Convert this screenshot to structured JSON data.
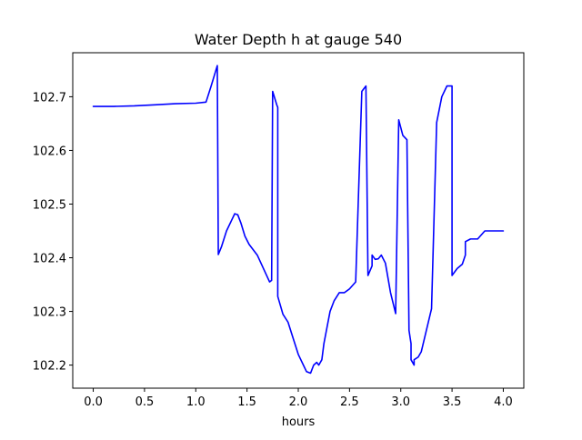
{
  "chart_data": {
    "type": "line",
    "title": "Water Depth h at gauge 540",
    "xlabel": "hours",
    "ylabel": "",
    "xlim": [
      -0.2,
      4.2
    ],
    "ylim": [
      102.157,
      102.782
    ],
    "xticks": [
      0.0,
      0.5,
      1.0,
      1.5,
      2.0,
      2.5,
      3.0,
      3.5,
      4.0
    ],
    "xtick_labels": [
      "0.0",
      "0.5",
      "1.0",
      "1.5",
      "2.0",
      "2.5",
      "3.0",
      "3.5",
      "4.0"
    ],
    "yticks": [
      102.2,
      102.3,
      102.4,
      102.5,
      102.6,
      102.7
    ],
    "ytick_labels": [
      "102.2",
      "102.3",
      "102.4",
      "102.5",
      "102.6",
      "102.7"
    ],
    "grid": false,
    "legend": "none",
    "series": [
      {
        "color": "#0000ff",
        "x": [
          0.0,
          0.2,
          0.4,
          0.6,
          0.8,
          1.0,
          1.1,
          1.15,
          1.21,
          1.22,
          1.25,
          1.3,
          1.35,
          1.38,
          1.41,
          1.44,
          1.48,
          1.52,
          1.6,
          1.66,
          1.72,
          1.74,
          1.75,
          1.79,
          1.8,
          1.8,
          1.85,
          1.9,
          1.95,
          2.0,
          2.05,
          2.08,
          2.12,
          2.15,
          2.18,
          2.2,
          2.23,
          2.25,
          2.28,
          2.31,
          2.35,
          2.4,
          2.45,
          2.5,
          2.56,
          2.62,
          2.66,
          2.68,
          2.68,
          2.72,
          2.72,
          2.75,
          2.78,
          2.81,
          2.85,
          2.9,
          2.95,
          2.98,
          3.02,
          3.06,
          3.08,
          3.08,
          3.1,
          3.1,
          3.13,
          3.13,
          3.17,
          3.2,
          3.25,
          3.3,
          3.35,
          3.4,
          3.45,
          3.5,
          3.5,
          3.55,
          3.6,
          3.63,
          3.63,
          3.68,
          3.75,
          3.82,
          3.88,
          3.94,
          4.0
        ],
        "y": [
          102.682,
          102.682,
          102.683,
          102.685,
          102.687,
          102.688,
          102.69,
          102.72,
          102.758,
          102.406,
          102.42,
          102.45,
          102.47,
          102.482,
          102.48,
          102.465,
          102.44,
          102.425,
          102.405,
          102.38,
          102.355,
          102.358,
          102.71,
          102.685,
          102.68,
          102.328,
          102.295,
          102.28,
          102.25,
          102.22,
          102.2,
          102.188,
          102.185,
          102.2,
          102.205,
          102.2,
          102.21,
          102.24,
          102.27,
          102.3,
          102.32,
          102.335,
          102.335,
          102.342,
          102.355,
          102.71,
          102.72,
          102.367,
          102.367,
          102.385,
          102.405,
          102.397,
          102.398,
          102.405,
          102.39,
          102.335,
          102.296,
          102.657,
          102.628,
          102.62,
          102.268,
          102.265,
          102.24,
          102.21,
          102.2,
          102.21,
          102.215,
          102.225,
          102.265,
          102.305,
          102.652,
          102.7,
          102.72,
          102.72,
          102.367,
          102.38,
          102.388,
          102.405,
          102.43,
          102.435,
          102.435,
          102.45,
          102.45,
          102.45,
          102.45
        ]
      }
    ]
  }
}
